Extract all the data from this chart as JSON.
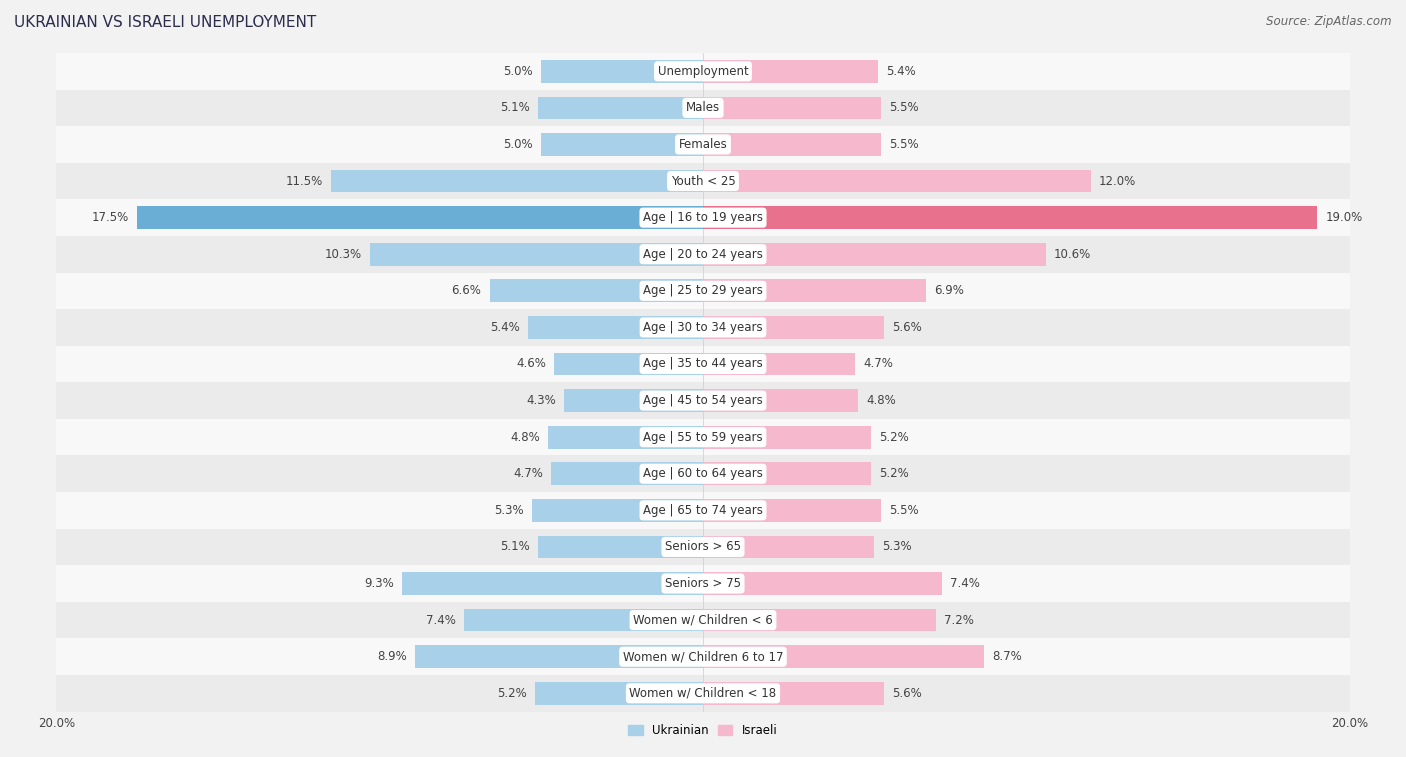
{
  "title": "UKRAINIAN VS ISRAELI UNEMPLOYMENT",
  "source": "Source: ZipAtlas.com",
  "categories": [
    "Unemployment",
    "Males",
    "Females",
    "Youth < 25",
    "Age | 16 to 19 years",
    "Age | 20 to 24 years",
    "Age | 25 to 29 years",
    "Age | 30 to 34 years",
    "Age | 35 to 44 years",
    "Age | 45 to 54 years",
    "Age | 55 to 59 years",
    "Age | 60 to 64 years",
    "Age | 65 to 74 years",
    "Seniors > 65",
    "Seniors > 75",
    "Women w/ Children < 6",
    "Women w/ Children 6 to 17",
    "Women w/ Children < 18"
  ],
  "ukrainian": [
    5.0,
    5.1,
    5.0,
    11.5,
    17.5,
    10.3,
    6.6,
    5.4,
    4.6,
    4.3,
    4.8,
    4.7,
    5.3,
    5.1,
    9.3,
    7.4,
    8.9,
    5.2
  ],
  "israeli": [
    5.4,
    5.5,
    5.5,
    12.0,
    19.0,
    10.6,
    6.9,
    5.6,
    4.7,
    4.8,
    5.2,
    5.2,
    5.5,
    5.3,
    7.4,
    7.2,
    8.7,
    5.6
  ],
  "ukrainian_color": "#a8d0e8",
  "israeli_color": "#f5b8cc",
  "ukrainian_highlight": "#6aaed6",
  "israeli_highlight": "#e8728e",
  "background_color": "#f2f2f2",
  "row_bg_even": "#ebebeb",
  "row_bg_odd": "#f8f8f8",
  "axis_limit": 20.0,
  "bar_height": 0.62,
  "legend_ukrainian": "Ukrainian",
  "legend_israeli": "Israeli",
  "title_fontsize": 11,
  "label_fontsize": 8.5,
  "value_fontsize": 8.5,
  "source_fontsize": 8.5
}
